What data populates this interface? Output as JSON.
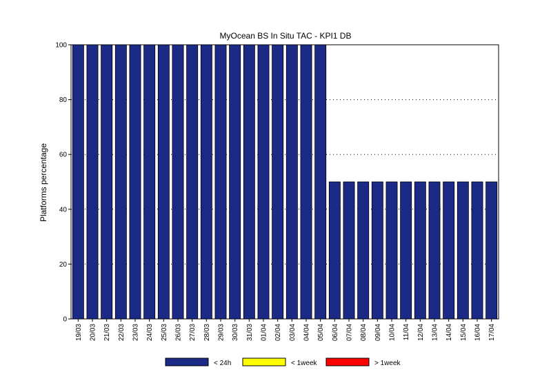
{
  "chart_data": {
    "type": "bar",
    "title": "MyOcean  BS In Situ TAC - KPI1  DB",
    "xlabel": "",
    "ylabel": "Platforms percentage",
    "ylim": [
      0,
      100
    ],
    "yticks": [
      "0",
      "20",
      "40",
      "60",
      "80",
      "100"
    ],
    "grid": "dotted horizontal",
    "legend_placement": "bottom",
    "categories": [
      "19/03",
      "20/03",
      "21/03",
      "22/03",
      "23/03",
      "24/03",
      "25/03",
      "26/03",
      "27/03",
      "28/03",
      "29/03",
      "30/03",
      "31/03",
      "01/04",
      "02/04",
      "03/04",
      "04/04",
      "05/04",
      "06/04",
      "07/04",
      "08/04",
      "09/04",
      "10/04",
      "11/04",
      "12/04",
      "13/04",
      "14/04",
      "15/04",
      "16/04",
      "17/04"
    ],
    "series": [
      {
        "name": "< 24h",
        "color": "#1a2a86",
        "values": [
          100,
          100,
          100,
          100,
          100,
          100,
          100,
          100,
          100,
          100,
          100,
          100,
          100,
          100,
          100,
          100,
          100,
          100,
          50,
          50,
          50,
          50,
          50,
          50,
          50,
          50,
          50,
          50,
          50,
          50
        ]
      },
      {
        "name": "< 1week",
        "color": "#ffff00",
        "values": [
          0,
          0,
          0,
          0,
          0,
          0,
          0,
          0,
          0,
          0,
          0,
          0,
          0,
          0,
          0,
          0,
          0,
          0,
          0,
          0,
          0,
          0,
          0,
          0,
          0,
          0,
          0,
          0,
          0,
          0
        ]
      },
      {
        "name": "> 1week",
        "color": "#ff0000",
        "values": [
          0,
          0,
          0,
          0,
          0,
          0,
          0,
          0,
          0,
          0,
          0,
          0,
          0,
          0,
          0,
          0,
          0,
          0,
          0,
          0,
          0,
          0,
          0,
          0,
          0,
          0,
          0,
          0,
          0,
          0
        ]
      }
    ]
  }
}
